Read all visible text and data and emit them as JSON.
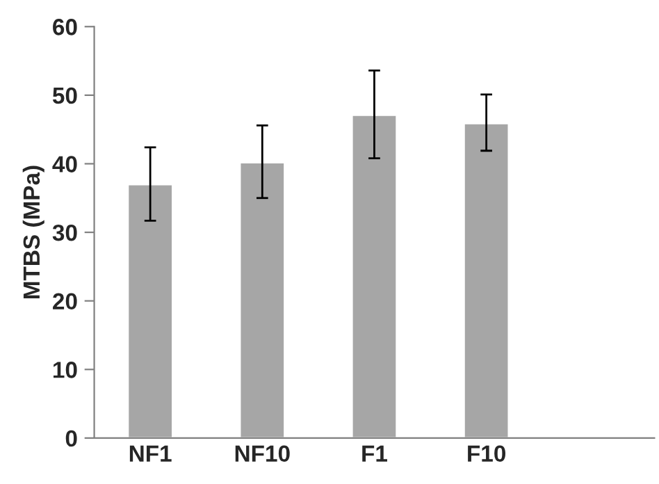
{
  "chart_data": {
    "type": "bar",
    "ylabel": "MTBS (MPa)",
    "categories": [
      "NF1",
      "NF10",
      "F1",
      "F10",
      null
    ],
    "values": [
      37.0,
      40.2,
      47.1,
      45.9,
      null
    ],
    "errors": [
      [
        31.7,
        42.4
      ],
      [
        35.0,
        45.6
      ],
      [
        40.8,
        53.6
      ],
      [
        41.9,
        50.1
      ],
      null
    ],
    "color": "#a6a6a6",
    "ylim": [
      0,
      60
    ],
    "yticks": [
      0,
      10,
      20,
      30,
      40,
      50,
      60
    ],
    "grid": false,
    "legend": false
  }
}
